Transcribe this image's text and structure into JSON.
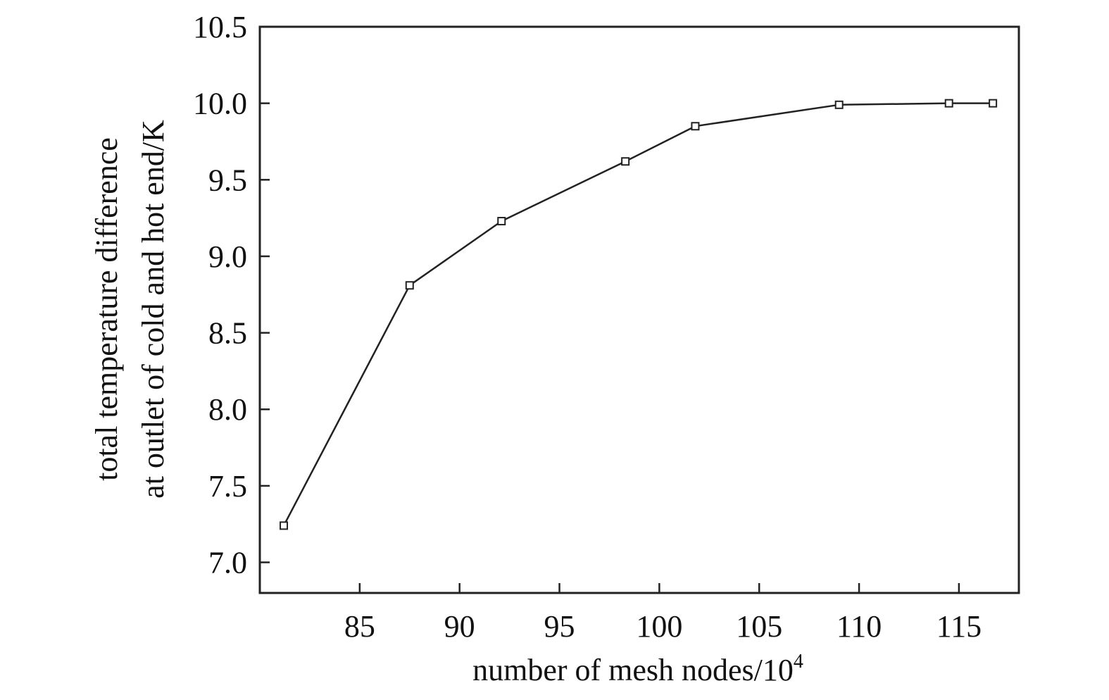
{
  "chart_data": {
    "type": "line",
    "title": "",
    "xlabel": "number of mesh nodes/10",
    "xlabel_superscript": "4",
    "ylabel_lines": [
      "total temperature difference",
      "at outlet of cold and hot end/K"
    ],
    "xlim": [
      80,
      118
    ],
    "ylim": [
      6.8,
      10.5
    ],
    "x_ticks": [
      85,
      90,
      95,
      100,
      105,
      110,
      115
    ],
    "x_tick_labels": [
      "85",
      "90",
      "95",
      "100",
      "105",
      "110",
      "115"
    ],
    "y_ticks": [
      7.0,
      7.5,
      8.0,
      8.5,
      9.0,
      9.5,
      10.0,
      10.5
    ],
    "y_tick_labels": [
      "7.0",
      "7.5",
      "8.0",
      "8.5",
      "9.0",
      "9.5",
      "10.0",
      "10.5"
    ],
    "grid": false,
    "series": [
      {
        "marker": "square",
        "color": "#222222",
        "x": [
          81.2,
          87.5,
          92.1,
          98.3,
          101.8,
          109.0,
          114.5,
          116.7
        ],
        "y": [
          7.24,
          8.81,
          9.23,
          9.62,
          9.85,
          9.99,
          10.0,
          10.0
        ]
      }
    ]
  }
}
